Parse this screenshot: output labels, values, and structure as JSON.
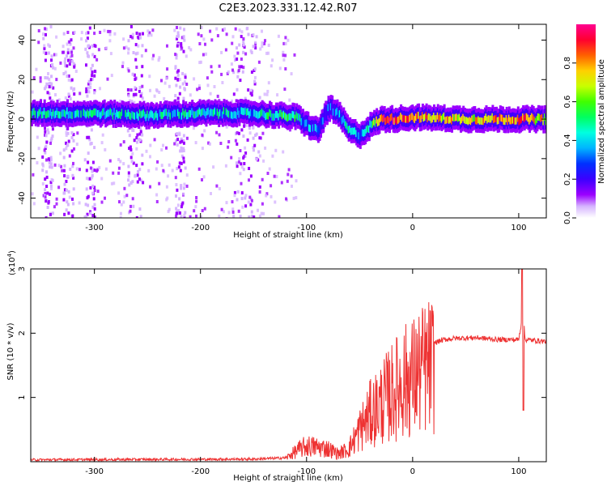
{
  "chart_data": [
    {
      "type": "heatmap",
      "title": "C2E3.2023.331.12.42.R07",
      "xlabel": "Height of straight line (km)",
      "ylabel": "Frequency (Hz)",
      "xlim": [
        -360,
        126
      ],
      "ylim": [
        -50,
        48
      ],
      "xticks": [
        -300,
        -200,
        -100,
        0,
        100
      ],
      "yticks": [
        -40,
        -20,
        0,
        20,
        40
      ],
      "colorbar": {
        "label": "Normalized spectral amplitude",
        "range": [
          0,
          1
        ],
        "ticks": [
          0.0,
          0.2,
          0.4,
          0.6,
          0.8
        ],
        "colors": [
          "#ffffff",
          "#d6b4ff",
          "#9b00ff",
          "#3c00ff",
          "#0030ff",
          "#00b4ff",
          "#00ffe0",
          "#00ff60",
          "#40ff00",
          "#c8ff00",
          "#ffd000",
          "#ff6000",
          "#ff0030",
          "#ff0090"
        ]
      },
      "ridge": {
        "x": [
          -360,
          -300,
          -250,
          -200,
          -150,
          -130,
          -110,
          -100,
          -90,
          -80,
          -70,
          -60,
          -50,
          -40,
          -30,
          -20,
          0,
          50,
          100,
          126
        ],
        "freq": [
          3,
          3,
          2,
          3,
          3,
          2,
          1,
          -3,
          -6,
          6,
          2,
          -6,
          -8,
          -3,
          0,
          0,
          1,
          0,
          0,
          0
        ],
        "amp": [
          0.45,
          0.45,
          0.45,
          0.45,
          0.4,
          0.5,
          0.55,
          0.35,
          0.3,
          0.3,
          0.4,
          0.45,
          0.35,
          0.45,
          0.85,
          0.9,
          0.8,
          0.7,
          0.85,
          0.7
        ]
      },
      "noise_bands_x": [
        [
          -350,
          -340
        ],
        [
          -330,
          -320
        ],
        [
          -310,
          -300
        ],
        [
          -270,
          -255
        ],
        [
          -225,
          -215
        ],
        [
          -170,
          -145
        ]
      ]
    },
    {
      "type": "line",
      "title": "",
      "xlabel": "Height of straight line (km)",
      "ylabel": "SNR (10 * v/v)",
      "yscale_label": "(x10",
      "yscale_exp": "4",
      "yscale_close": ")",
      "xlim": [
        -360,
        126
      ],
      "ylim": [
        0,
        3
      ],
      "xticks": [
        -300,
        -200,
        -100,
        0,
        100
      ],
      "yticks": [
        1,
        2,
        3
      ],
      "color": "#ee3333",
      "envelope": {
        "x": [
          -360,
          -150,
          -120,
          -110,
          -100,
          -80,
          -70,
          -60,
          -50,
          -40,
          -30,
          -20,
          -10,
          0,
          10,
          20,
          30,
          40,
          60,
          80,
          90,
          100,
          102,
          104,
          106,
          126
        ],
        "y": [
          0.03,
          0.04,
          0.06,
          0.2,
          0.3,
          0.25,
          0.15,
          0.25,
          0.6,
          0.9,
          1.1,
          1.3,
          1.5,
          1.6,
          1.75,
          1.85,
          1.9,
          1.92,
          1.93,
          1.9,
          1.9,
          1.9,
          2.1,
          2.4,
          1.9,
          1.87
        ]
      },
      "spike": {
        "x": 103,
        "y_max": 3.0,
        "y_min": 0.8
      }
    }
  ]
}
